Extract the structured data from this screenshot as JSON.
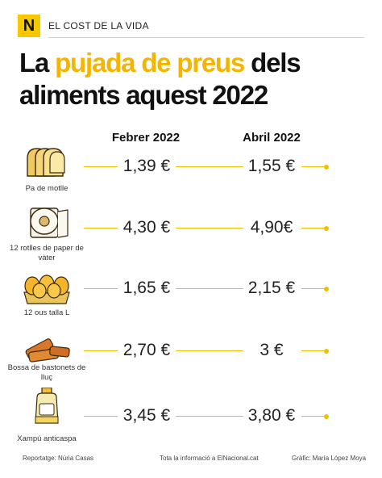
{
  "header": {
    "logo": "N",
    "section": "EL COST DE LA VIDA"
  },
  "title": {
    "part1": "La ",
    "highlight": "pujada de preus",
    "part2": " dels aliments aquest 2022"
  },
  "columns": {
    "feb": "Febrer 2022",
    "apr": "Abril 2022"
  },
  "colors": {
    "accent": "#f5b400",
    "logo_bg": "#f7c800",
    "line": "#f0c000"
  },
  "rows": [
    {
      "label": "Pa de motlle",
      "icon": "bread-icon",
      "feb": "1,39 €",
      "apr": "1,55 €"
    },
    {
      "label": "12 rotlles de paper de vàter",
      "icon": "toilet-paper-icon",
      "feb": "4,30 €",
      "apr": "4,90€"
    },
    {
      "label": "12 ous talla L",
      "icon": "eggs-icon",
      "feb": "1,65 €",
      "apr": "2,15 €"
    },
    {
      "label": "Bossa de bastonets de lluç",
      "icon": "fish-sticks-icon",
      "feb": "2,70 €",
      "apr": "3 €"
    },
    {
      "label": "Xampú anticaspa",
      "icon": "shampoo-icon",
      "feb": "3,45 €",
      "apr": "3,80 €"
    }
  ],
  "footer": {
    "credit": "Reportatge: Núria Casas",
    "info": "Tota la informació a ElNacional.cat",
    "graphic": "Gràfic: María López Moya"
  },
  "chart_data": {
    "type": "table",
    "title": "La pujada de preus dels aliments aquest 2022",
    "columns": [
      "Febrer 2022",
      "Abril 2022"
    ],
    "categories": [
      "Pa de motlle",
      "12 rotlles de paper de vàter",
      "12 ous talla L",
      "Bossa de bastonets de lluç",
      "Xampú anticaspa"
    ],
    "series": [
      {
        "name": "Febrer 2022",
        "values": [
          1.39,
          4.3,
          1.65,
          2.7,
          3.45
        ]
      },
      {
        "name": "Abril 2022",
        "values": [
          1.55,
          4.9,
          2.15,
          3.0,
          3.8
        ]
      }
    ],
    "unit": "€"
  }
}
